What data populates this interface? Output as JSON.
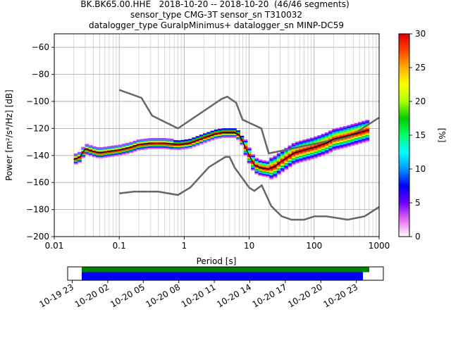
{
  "title_lines": [
    "BK.BK65.00.HHE   2018-10-20 -- 2018-10-20  (46/46 segments)",
    "sensor_type CMG-3T sensor_sn T310032",
    "datalogger_type GuralpMinimus+ datalogger_sn MINP-DC59"
  ],
  "chart_data": [
    {
      "type": "heatmap",
      "subtype": "probabilistic-power-spectral-density",
      "xlabel": "Period [s]",
      "xscale": "log",
      "xlim": [
        0.01,
        1000
      ],
      "xticks": [
        0.01,
        0.1,
        1,
        10,
        100,
        1000
      ],
      "xtick_labels": [
        "0.01",
        "0.1",
        "1",
        "10",
        "100",
        "1000"
      ],
      "ylabel": "Power [m²/s⁴/Hz] [dB]",
      "ylim": [
        -200,
        -50
      ],
      "yticks": [
        -60,
        -80,
        -100,
        -120,
        -140,
        -160,
        -180,
        -200
      ],
      "ytick_labels": [
        "−60",
        "−80",
        "−100",
        "−120",
        "−140",
        "−160",
        "−180",
        "−200"
      ],
      "grid": true,
      "colorbar": {
        "label": "[%]",
        "range": [
          0,
          30
        ],
        "ticks": [
          0,
          5,
          10,
          15,
          20,
          25,
          30
        ],
        "tick_labels": [
          "0",
          "5",
          "10",
          "15",
          "20",
          "25",
          "30"
        ],
        "colormap": [
          "#ffffff",
          "#e86cf0",
          "#6a00ff",
          "#0000ff",
          "#0096ff",
          "#00ffff",
          "#00ff66",
          "#00cc00",
          "#aaff00",
          "#ffff00",
          "#ffb000",
          "#ff4400",
          "#e00000"
        ]
      },
      "series": [
        {
          "role": "new-high-noise-model",
          "color": "#666666",
          "x": [
            0.1,
            0.22,
            0.32,
            0.8,
            3.8,
            4.6,
            6.3,
            7.9,
            15.4,
            20,
            354.8,
            1000
          ],
          "y": [
            -91.5,
            -97.4,
            -110.5,
            -120,
            -98,
            -96.5,
            -101,
            -113.5,
            -120,
            -138.5,
            -126,
            -112
          ]
        },
        {
          "role": "new-low-noise-model",
          "color": "#666666",
          "x": [
            0.1,
            0.17,
            0.4,
            0.8,
            1.24,
            2.4,
            4.3,
            5,
            6,
            10,
            12,
            15.6,
            21.9,
            31.6,
            45,
            70,
            101,
            154,
            328,
            600,
            1000
          ],
          "y": [
            -168,
            -166.7,
            -166.7,
            -169.2,
            -163.7,
            -148.6,
            -141.1,
            -141.1,
            -149,
            -163.8,
            -166.2,
            -162.1,
            -177.5,
            -185,
            -187.5,
            -187.5,
            -185,
            -185,
            -187.5,
            -185,
            -178
          ]
        },
        {
          "role": "mode",
          "color": "#000000",
          "x": [
            0.02,
            0.025,
            0.03,
            0.04,
            0.05,
            0.07,
            0.1,
            0.15,
            0.2,
            0.3,
            0.5,
            0.8,
            1.2,
            2,
            3,
            4,
            5,
            6,
            7,
            8,
            10,
            12,
            15,
            20,
            25,
            30,
            40,
            50,
            70,
            100,
            150,
            200,
            300,
            500,
            700
          ],
          "y": [
            -143,
            -141,
            -135,
            -137,
            -138,
            -137,
            -136,
            -134,
            -132,
            -131,
            -131,
            -132,
            -131,
            -127,
            -124,
            -123,
            -123,
            -123,
            -125,
            -130,
            -140,
            -147,
            -149,
            -150,
            -148,
            -145,
            -141,
            -138,
            -136,
            -134,
            -131,
            -128,
            -126,
            -123,
            -121
          ]
        }
      ],
      "density_ranges": [
        {
          "x": [
            0.02,
            0.7
          ],
          "y": [
            -145,
            -127
          ]
        },
        {
          "x": [
            0.7,
            8
          ],
          "y": [
            -136,
            -119
          ]
        },
        {
          "x": [
            8,
            20
          ],
          "y": [
            -153,
            -125
          ]
        },
        {
          "x": [
            20,
            700
          ],
          "y": [
            -153,
            -114
          ]
        }
      ]
    },
    {
      "type": "timeline",
      "subtype": "data-coverage",
      "xtick_labels": [
        "10-19 23",
        "10-20 02",
        "10-20 05",
        "10-20 08",
        "10-20 11",
        "10-20 14",
        "10-20 17",
        "10-20 20",
        "10-20 23"
      ],
      "bars": [
        {
          "role": "data-available",
          "color": "#008000",
          "start": "2018-10-20 00:00",
          "end": "2018-10-20 23:59"
        },
        {
          "role": "used-in-ppsd",
          "color": "#0000ff",
          "start": "2018-10-20 00:00",
          "end": "2018-10-20 23:00"
        }
      ]
    }
  ]
}
